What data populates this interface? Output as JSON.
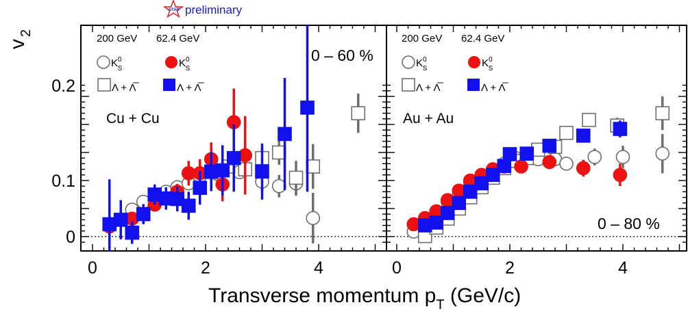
{
  "header": {
    "logo_text": "STAR",
    "preliminary": "preliminary"
  },
  "axes": {
    "ylabel": "v",
    "ylabel_sub": "2",
    "xlabel": "Transverse momentum p",
    "xlabel_sub": "T",
    "xlabel_unit": " (GeV/c)",
    "yticks": [
      "0.2",
      "0.1",
      "0"
    ],
    "xticks_left": [
      "0",
      "2",
      "4"
    ],
    "xticks_right": [
      "0",
      "2",
      "4"
    ]
  },
  "panels": [
    {
      "energy_a": "200 GeV",
      "energy_b": "62.4 GeV",
      "sp1": "K",
      "sp1_sup": "0",
      "sp1_sub": "S",
      "sp2": "Λ + Λ̅",
      "system": "Cu + Cu",
      "centrality": "0 – 60 %"
    },
    {
      "energy_a": "200 GeV",
      "energy_b": "62.4 GeV",
      "sp1": "K",
      "sp1_sup": "0",
      "sp1_sub": "S",
      "sp2": "Λ + Λ̅",
      "system": "Au + Au",
      "centrality": "0 – 80 %"
    }
  ],
  "colors": {
    "open": "#6e6e6e",
    "k62": "#ee1111",
    "l62": "#1111ee",
    "star": "#1a1adb"
  },
  "chart_data": [
    {
      "type": "scatter",
      "title": "Cu + Cu",
      "xlabel": "Transverse momentum p_T (GeV/c)",
      "ylabel": "v_2",
      "xlim": [
        -0.3,
        5.1
      ],
      "ylim": [
        -0.02,
        0.275
      ],
      "series": [
        {
          "name": "K0S 200 GeV",
          "points": [
            [
              0.3,
              0.02,
              0.004
            ],
            [
              0.5,
              0.03,
              0.004
            ],
            [
              0.7,
              0.048,
              0.004
            ],
            [
              0.9,
              0.062,
              0.004
            ],
            [
              1.1,
              0.07,
              0.005
            ],
            [
              1.3,
              0.08,
              0.005
            ],
            [
              1.5,
              0.088,
              0.006
            ],
            [
              1.7,
              0.095,
              0.007
            ],
            [
              1.9,
              0.108,
              0.008
            ],
            [
              2.2,
              0.112,
              0.01
            ],
            [
              2.6,
              0.115,
              0.012
            ],
            [
              3.0,
              0.098,
              0.016
            ],
            [
              3.3,
              0.09,
              0.02
            ],
            [
              3.6,
              0.095,
              0.022
            ],
            [
              3.9,
              0.033,
              0.045
            ]
          ]
        },
        {
          "name": "K0S 62.4 GeV",
          "points": [
            [
              0.3,
              0.018,
              0.006
            ],
            [
              0.7,
              0.032,
              0.008
            ],
            [
              1.1,
              0.057,
              0.01
            ],
            [
              1.5,
              0.08,
              0.014
            ],
            [
              1.7,
              0.113,
              0.022
            ],
            [
              1.9,
              0.113,
              0.025
            ],
            [
              2.1,
              0.138,
              0.03
            ],
            [
              2.3,
              0.093,
              0.03
            ],
            [
              2.5,
              0.204,
              0.06
            ],
            [
              2.7,
              0.145,
              0.07
            ]
          ]
        },
        {
          "name": "Lambda+antiLambda 200 GeV",
          "points": [
            [
              2.1,
              0.115,
              0.01
            ],
            [
              2.4,
              0.125,
              0.012
            ],
            [
              2.7,
              0.12,
              0.015
            ],
            [
              3.0,
              0.14,
              0.018
            ],
            [
              3.3,
              0.15,
              0.022
            ],
            [
              3.6,
              0.105,
              0.03
            ],
            [
              3.9,
              0.125,
              0.04
            ],
            [
              4.7,
              0.22,
              0.035
            ]
          ]
        },
        {
          "name": "Lambda+antiLambda 62.4 GeV",
          "points": [
            [
              0.3,
              0.022,
              0.08
            ],
            [
              0.5,
              0.03,
              0.035
            ],
            [
              0.7,
              0.007,
              0.02
            ],
            [
              0.9,
              0.04,
              0.018
            ],
            [
              1.1,
              0.075,
              0.018
            ],
            [
              1.3,
              0.068,
              0.02
            ],
            [
              1.5,
              0.067,
              0.022
            ],
            [
              1.7,
              0.055,
              0.025
            ],
            [
              1.9,
              0.087,
              0.03
            ],
            [
              2.1,
              0.116,
              0.035
            ],
            [
              2.3,
              0.118,
              0.045
            ],
            [
              2.5,
              0.14,
              0.06
            ],
            [
              3.0,
              0.116,
              0.05
            ],
            [
              3.4,
              0.183,
              0.1
            ],
            [
              3.8,
              0.23,
              0.15
            ]
          ]
        }
      ]
    },
    {
      "type": "scatter",
      "title": "Au + Au",
      "xlabel": "Transverse momentum p_T (GeV/c)",
      "ylabel": "v_2",
      "xlim": [
        -0.3,
        5.1
      ],
      "ylim": [
        -0.02,
        0.275
      ],
      "series": [
        {
          "name": "K0S 200 GeV",
          "points": [
            [
              0.3,
              0.009,
              0.003
            ],
            [
              0.5,
              0.028,
              0.003
            ],
            [
              0.7,
              0.045,
              0.003
            ],
            [
              0.9,
              0.062,
              0.003
            ],
            [
              1.1,
              0.075,
              0.003
            ],
            [
              1.3,
              0.095,
              0.003
            ],
            [
              1.5,
              0.11,
              0.003
            ],
            [
              1.7,
              0.12,
              0.004
            ],
            [
              1.9,
              0.13,
              0.004
            ],
            [
              2.1,
              0.14,
              0.005
            ],
            [
              2.3,
              0.14,
              0.006
            ],
            [
              2.5,
              0.138,
              0.008
            ],
            [
              2.8,
              0.138,
              0.01
            ],
            [
              3.0,
              0.13,
              0.012
            ],
            [
              3.5,
              0.142,
              0.015
            ],
            [
              4.0,
              0.142,
              0.02
            ],
            [
              4.7,
              0.148,
              0.035
            ]
          ]
        },
        {
          "name": "K0S 62.4 GeV",
          "points": [
            [
              0.3,
              0.022,
              0.003
            ],
            [
              0.5,
              0.033,
              0.003
            ],
            [
              0.7,
              0.045,
              0.003
            ],
            [
              0.9,
              0.065,
              0.004
            ],
            [
              1.1,
              0.082,
              0.004
            ],
            [
              1.3,
              0.1,
              0.005
            ],
            [
              1.5,
              0.11,
              0.005
            ],
            [
              1.7,
              0.12,
              0.006
            ],
            [
              1.9,
              0.125,
              0.007
            ],
            [
              2.2,
              0.125,
              0.008
            ],
            [
              2.7,
              0.133,
              0.01
            ],
            [
              3.3,
              0.122,
              0.015
            ],
            [
              3.95,
              0.11,
              0.02
            ]
          ]
        },
        {
          "name": "Lambda+antiLambda 200 GeV",
          "points": [
            [
              0.5,
              0.001,
              0.004
            ],
            [
              0.7,
              0.016,
              0.004
            ],
            [
              0.9,
              0.032,
              0.004
            ],
            [
              1.1,
              0.05,
              0.004
            ],
            [
              1.3,
              0.07,
              0.004
            ],
            [
              1.5,
              0.088,
              0.005
            ],
            [
              1.7,
              0.105,
              0.005
            ],
            [
              1.9,
              0.122,
              0.005
            ],
            [
              2.1,
              0.135,
              0.006
            ],
            [
              2.3,
              0.14,
              0.006
            ],
            [
              2.5,
              0.155,
              0.008
            ],
            [
              2.8,
              0.16,
              0.01
            ],
            [
              3.0,
              0.185,
              0.012
            ],
            [
              3.4,
              0.208,
              0.012
            ],
            [
              3.9,
              0.198,
              0.014
            ],
            [
              4.7,
              0.22,
              0.03
            ]
          ]
        },
        {
          "name": "Lambda+antiLambda 62.4 GeV",
          "points": [
            [
              0.5,
              0.02,
              0.004
            ],
            [
              0.7,
              0.025,
              0.004
            ],
            [
              0.9,
              0.042,
              0.004
            ],
            [
              1.1,
              0.06,
              0.004
            ],
            [
              1.3,
              0.08,
              0.005
            ],
            [
              1.5,
              0.095,
              0.005
            ],
            [
              1.7,
              0.11,
              0.006
            ],
            [
              1.9,
              0.126,
              0.006
            ],
            [
              2.0,
              0.147,
              0.007
            ],
            [
              2.3,
              0.148,
              0.008
            ],
            [
              2.7,
              0.162,
              0.01
            ],
            [
              3.3,
              0.18,
              0.012
            ],
            [
              3.95,
              0.192,
              0.015
            ]
          ]
        }
      ]
    }
  ]
}
